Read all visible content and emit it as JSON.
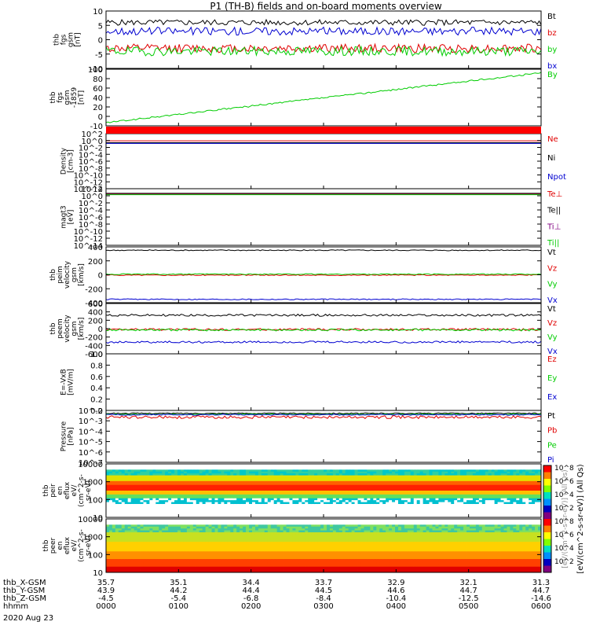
{
  "chart_data": {
    "type": "line",
    "title": "P1  (TH-B) fields and on-board moments overview",
    "date_label": "2020 Aug 23",
    "x": {
      "tick_labels": [
        "0000",
        "0100",
        "0200",
        "0300",
        "0400",
        "0500",
        "0600"
      ],
      "ephemeris": [
        {
          "label": "thb_X-GSM",
          "values": [
            "35.7",
            "35.1",
            "34.4",
            "33.7",
            "32.9",
            "32.1",
            "31.3"
          ]
        },
        {
          "label": "thb_Y-GSM",
          "values": [
            "43.9",
            "44.2",
            "44.4",
            "44.5",
            "44.6",
            "44.7",
            "44.7"
          ]
        },
        {
          "label": "thb_Z-GSM",
          "values": [
            "-4.5",
            "-5.4",
            "-6.8",
            "-8.4",
            "-10.4",
            "-12.5",
            "-14.6"
          ]
        },
        {
          "label": "hhmm",
          "values": [
            "0000",
            "0100",
            "0200",
            "0300",
            "0400",
            "0500",
            "0600"
          ]
        }
      ]
    },
    "panels": [
      {
        "ylabel": [
          "thb",
          "fgs",
          "gsm",
          "[nT]"
        ],
        "ylim": [
          -10,
          10
        ],
        "ticks": [
          "10",
          "5",
          "0",
          "-5",
          "-10"
        ],
        "series": [
          {
            "name": "Bt",
            "color": "#000000",
            "level": 6,
            "noise": 1.0
          },
          {
            "name": "bz",
            "color": "#e00000",
            "level": -3,
            "noise": 1.5
          },
          {
            "name": "by",
            "color": "#00cc00",
            "level": -4,
            "noise": 1.6
          },
          {
            "name": "bx",
            "color": "#0000d0",
            "level": 3,
            "noise": 1.4
          }
        ]
      },
      {
        "ylabel": [
          "thb",
          "fgs",
          "gsm",
          "-1859",
          "[nT]"
        ],
        "ylim": [
          -10,
          100
        ],
        "ticks": [
          "100",
          "80",
          "60",
          "40",
          "20",
          "0",
          "-10"
        ],
        "series": [
          {
            "name": "By",
            "color": "#00cc00",
            "from": -4,
            "to": 93,
            "noise": 1.5
          }
        ]
      },
      {
        "ylabel": [
          "Density",
          "[cm-3]"
        ],
        "ylim": [
          -14,
          3
        ],
        "ticks": [
          "10^2",
          "10^0",
          "10^-2",
          "10^-4",
          "10^-6",
          "10^-8",
          "10^-10",
          "10^-12",
          "10^-14"
        ],
        "series": [
          {
            "name": "Ne",
            "color": "#e00000",
            "level": 0.8
          },
          {
            "name": "Ni",
            "color": "#000000",
            "level": 0.2
          },
          {
            "name": "Npot",
            "color": "#0000d0",
            "level": 0
          }
        ]
      },
      {
        "ylabel": [
          "magt3",
          "[eV]"
        ],
        "ylim": [
          -14,
          3
        ],
        "ticks": [
          "10^2",
          "10^0",
          "10^-2",
          "10^-4",
          "10^-6",
          "10^-8",
          "10^-10",
          "10^-12",
          "10^-14"
        ],
        "series": [
          {
            "name": "Te⊥",
            "color": "#e00000",
            "level": 1.5
          },
          {
            "name": "Te||",
            "color": "#000000",
            "level": 1.6
          },
          {
            "name": "Ti⊥",
            "color": "#800080",
            "level": 1.3
          },
          {
            "name": "Ti||",
            "color": "#00cc00",
            "level": 1.2
          }
        ]
      },
      {
        "ylabel": [
          "thb",
          "peim",
          "velocity",
          "gsm",
          "[km/s]"
        ],
        "ylim": [
          -450,
          450
        ],
        "ticks": [
          "400",
          "200",
          "0",
          "-200",
          "-400"
        ],
        "series": [
          {
            "name": "Vt",
            "color": "#000000",
            "level": 395,
            "noise": 8
          },
          {
            "name": "Vz",
            "color": "#e00000",
            "level": -5,
            "noise": 8
          },
          {
            "name": "Vy",
            "color": "#00cc00",
            "level": 10,
            "noise": 8
          },
          {
            "name": "Vx",
            "color": "#0000d0",
            "level": -395,
            "noise": 8
          }
        ]
      },
      {
        "ylabel": [
          "thb",
          "peem",
          "velocity",
          "gsm",
          "[km/s]"
        ],
        "ylim": [
          -600,
          600
        ],
        "ticks": [
          "600",
          "400",
          "200",
          "0",
          "-200",
          "-400",
          "-600"
        ],
        "series": [
          {
            "name": "Vt",
            "color": "#000000",
            "level": 320,
            "noise": 25
          },
          {
            "name": "Vz",
            "color": "#e00000",
            "level": -20,
            "noise": 25
          },
          {
            "name": "Vy",
            "color": "#00cc00",
            "level": -30,
            "noise": 25
          },
          {
            "name": "Vx",
            "color": "#0000d0",
            "level": -320,
            "noise": 25
          }
        ]
      },
      {
        "ylabel": [
          "E=-VxB",
          "[mV/m]"
        ],
        "ylim": [
          0,
          1
        ],
        "ticks": [
          "1.0",
          "0.8",
          "0.6",
          "0.4",
          "0.2",
          "0.0"
        ],
        "series": [
          {
            "name": "Ez",
            "color": "#e00000",
            "level": null
          },
          {
            "name": "Ey",
            "color": "#00cc00",
            "level": null
          },
          {
            "name": "Ex",
            "color": "#0000d0",
            "level": null
          }
        ]
      },
      {
        "ylabel": [
          "Pressure",
          "[nPa]"
        ],
        "ylim": [
          -7.2,
          -1.8
        ],
        "ticks": [
          "10^-2",
          "10^-3",
          "10^-4",
          "10^-5",
          "10^-6",
          "10^-7"
        ],
        "series": [
          {
            "name": "Pt",
            "color": "#000000",
            "level": -2.1,
            "noise": 0.05
          },
          {
            "name": "Pb",
            "color": "#e00000",
            "level": -2.5,
            "noise": 0.15
          },
          {
            "name": "Pe",
            "color": "#00cc00",
            "level": -2.2,
            "noise": 0.05
          },
          {
            "name": "Pi",
            "color": "#0000d0",
            "level": -2.25,
            "noise": 0.05
          }
        ]
      },
      {
        "ylabel": [
          "thb",
          "peir",
          "en",
          "eflux",
          "eV/",
          "(cm^2-s-",
          "sr-eV)"
        ],
        "kind": "spectrogram",
        "style": "ion",
        "ylim": [
          5,
          20000
        ],
        "ticks": [
          "10000",
          "1000",
          "100",
          "10"
        ]
      },
      {
        "ylabel": [
          "thb",
          "peer",
          "en",
          "eflux",
          "eV/",
          "(cm^2-s-",
          "sr-eV)"
        ],
        "kind": "spectrogram",
        "style": "electron",
        "ylim": [
          5,
          20000
        ],
        "ticks": [
          "10000",
          "1000",
          "100",
          "10"
        ]
      }
    ],
    "colorbar": {
      "ticks": [
        "10^8",
        "10^6",
        "10^4",
        "10^2",
        "10^8",
        "10^6",
        "10^4",
        "10^2"
      ],
      "label": "[eV/(cm^2-s-sr-eV)] (All Qs)",
      "overlay_label": "[eV/(cm^2-s-sr-eV)] (All Qs)"
    }
  }
}
